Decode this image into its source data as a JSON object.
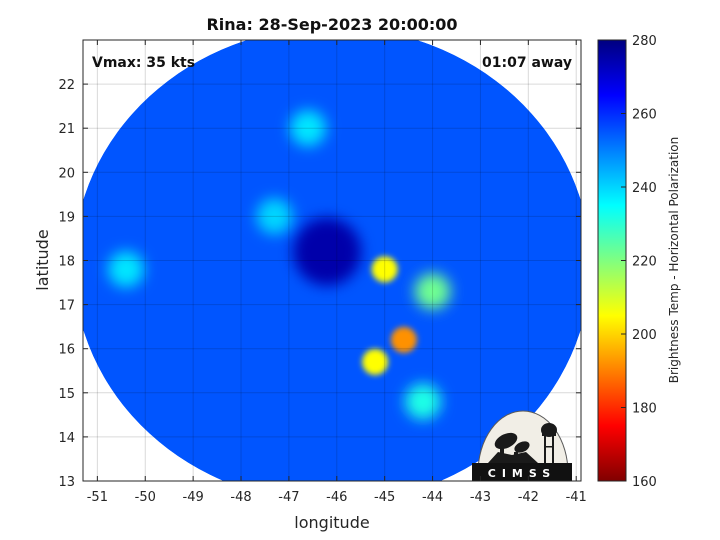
{
  "chart_data": {
    "type": "heatmap",
    "title": "Rina: 28-Sep-2023 20:00:00",
    "xlabel": "longitude",
    "ylabel": "latitude",
    "xlim": [
      -51.3,
      -40.9
    ],
    "ylim": [
      13,
      23
    ],
    "xticks": [
      -51,
      -50,
      -49,
      -48,
      -47,
      -46,
      -45,
      -44,
      -43,
      -42,
      -41
    ],
    "yticks": [
      13,
      14,
      15,
      16,
      17,
      18,
      19,
      20,
      21,
      22
    ],
    "grid": true,
    "annotations": {
      "vmax": "Vmax: 35 kts",
      "time_offset": "01:07 away"
    },
    "colorbar": {
      "label": "Brightness Temp - Horizontal Polarization",
      "range": [
        160,
        280
      ],
      "ticks": [
        160,
        180,
        200,
        220,
        240,
        260,
        280
      ],
      "colormap": "jet",
      "stops": [
        "#800000",
        "#ff0000",
        "#ff8000",
        "#ffff00",
        "#80ff80",
        "#00ffff",
        "#0080ff",
        "#0000ff",
        "#000080"
      ]
    },
    "swath": {
      "center_lon": -46.1,
      "center_lat": 17.9,
      "radius_deg": 5.4
    },
    "background_level": 255,
    "features": [
      {
        "name": "cold core / center",
        "lon": -46.2,
        "lat": 18.2,
        "value": 275
      },
      {
        "name": "convection",
        "lon": -45.0,
        "lat": 17.8,
        "value": 205
      },
      {
        "name": "convection",
        "lon": -44.0,
        "lat": 17.3,
        "value": 222
      },
      {
        "name": "convection",
        "lon": -44.6,
        "lat": 16.2,
        "value": 192
      },
      {
        "name": "convection",
        "lon": -45.2,
        "lat": 15.7,
        "value": 205
      },
      {
        "name": "convection",
        "lon": -44.2,
        "lat": 14.8,
        "value": 232
      },
      {
        "name": "convection",
        "lon": -47.3,
        "lat": 19.0,
        "value": 240
      },
      {
        "name": "convection",
        "lon": -46.6,
        "lat": 21.0,
        "value": 238
      },
      {
        "name": "convection",
        "lon": -50.4,
        "lat": 17.8,
        "value": 238
      }
    ]
  },
  "logo": {
    "text": "CIMSS"
  }
}
